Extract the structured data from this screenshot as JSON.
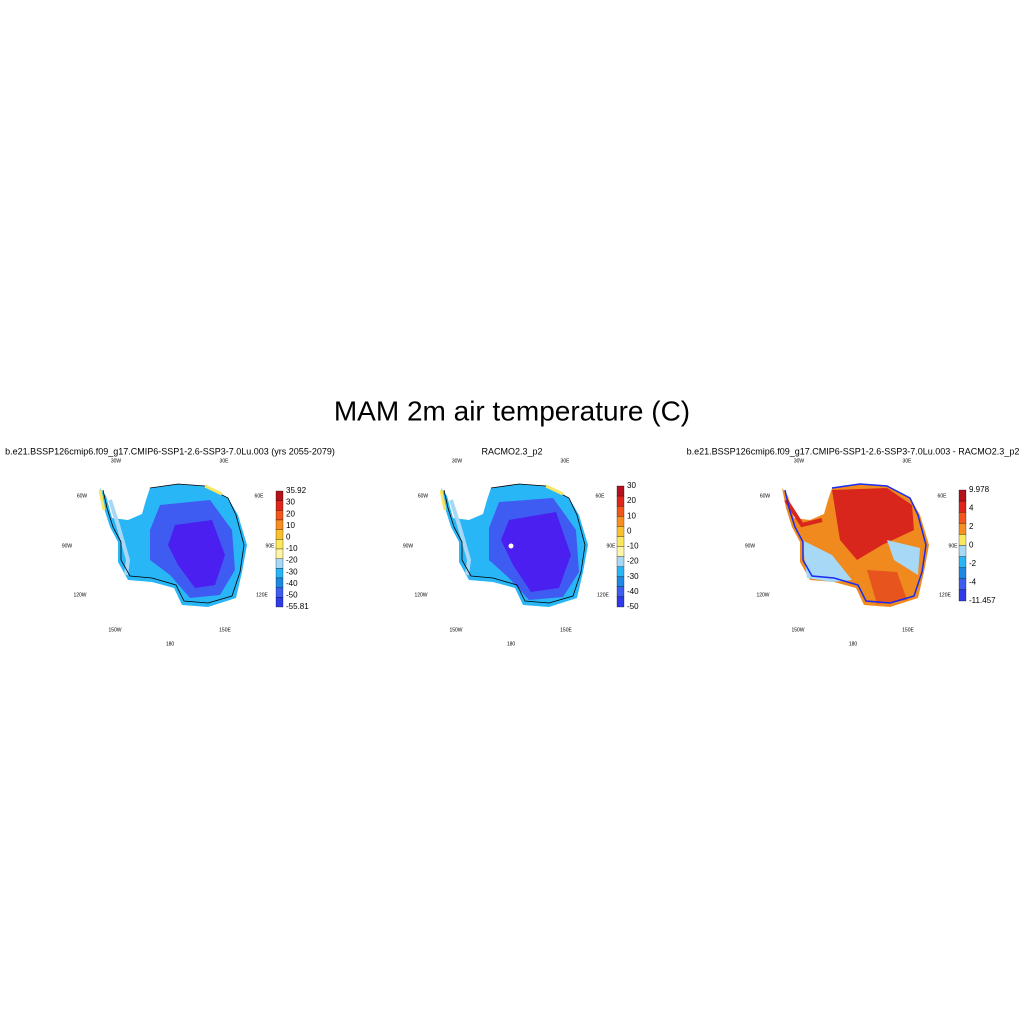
{
  "title": "MAM 2m air temperature (C)",
  "panels": [
    {
      "title": "b.e21.BSSP126cmip6.f09_g17.CMIP6-SSP1-2.6-SSP3-7.0Lu.003 (yrs 2055-2079)",
      "lon_labels": [
        "30W",
        "30E",
        "60W",
        "60E",
        "90W",
        "90E",
        "120W",
        "120E",
        "150W",
        "150E",
        "180"
      ],
      "colorbar_labels": [
        "35.92",
        "30",
        "20",
        "10",
        "0",
        "-10",
        "-20",
        "-30",
        "-40",
        "-50",
        "-55.81"
      ]
    },
    {
      "title": "RACMO2.3_p2",
      "lon_labels": [
        "30W",
        "30E",
        "60W",
        "60E",
        "90W",
        "90E",
        "120W",
        "120E",
        "150W",
        "150E",
        "180"
      ],
      "colorbar_labels": [
        "30",
        "20",
        "10",
        "0",
        "-10",
        "-20",
        "-30",
        "-40",
        "-50"
      ]
    },
    {
      "title": "b.e21.BSSP126cmip6.f09_g17.CMIP6-SSP1-2.6-SSP3-7.0Lu.003 - RACMO2.3_p2",
      "lon_labels": [
        "30W",
        "30E",
        "60W",
        "60E",
        "90W",
        "90E",
        "120W",
        "120E",
        "150W",
        "150E",
        "180"
      ],
      "colorbar_labels": [
        "9.978",
        "4",
        "2",
        "0",
        "-2",
        "-4",
        "-11.457"
      ]
    }
  ]
}
